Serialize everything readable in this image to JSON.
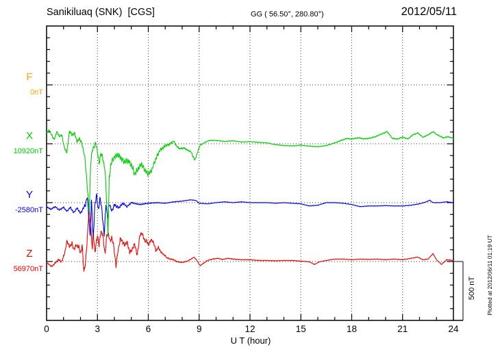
{
  "header": {
    "station": "Sanikiluaq (SNK)  [CGS]",
    "coords": "GG ( 56.50°, 280.80°)",
    "date": "2012/05/11"
  },
  "x_axis": {
    "label": "U T (hour)",
    "ticks": [
      0,
      3,
      6,
      9,
      12,
      15,
      18,
      21,
      24
    ],
    "minor_step_hours": 1,
    "range": [
      0,
      24
    ]
  },
  "scale_bar": {
    "label": "500 nT",
    "nT": 500
  },
  "footer_note": "Plotted at 2012/06/11 01:19 UT",
  "components": [
    {
      "id": "F",
      "label": "F",
      "value_label": "0nT",
      "color": "#FFA500"
    },
    {
      "id": "X",
      "label": "X",
      "value_label": "10920nT",
      "color": "#00CC00"
    },
    {
      "id": "Y",
      "label": "Y",
      "value_label": "-2580nT",
      "color": "#0000EE"
    },
    {
      "id": "Z",
      "label": "Z",
      "value_label": "56970nT",
      "color": "#EE0000"
    }
  ],
  "chart_data": {
    "type": "line",
    "title": "Sanikiluaq (SNK) [CGS] magnetogram 2012/05/11",
    "x_label": "U T (hour)",
    "x_range": [
      0,
      24
    ],
    "x_major_tick_hours": 3,
    "grid": "dotted at 3-hour verticals and component baselines",
    "minor_tick_nT": 100,
    "baseline_spacing_nT": 500,
    "total_span_nT": 2500,
    "scale_bar_nT": 500,
    "point_format": "[UT_hour, delta_nT_from_baseline]",
    "series": [
      {
        "name": "F",
        "color": "#FFA500",
        "baseline_value_nT": 0,
        "baseline_label": "0nT",
        "jitter_nT": [
          [
            0,
            0
          ],
          [
            24,
            0
          ]
        ],
        "points": []
      },
      {
        "name": "X",
        "color": "#00CC00",
        "baseline_value_nT": 10920,
        "baseline_label": "10920nT",
        "jitter_nT": [
          [
            0,
            10
          ],
          [
            1,
            12
          ],
          [
            2.2,
            20
          ],
          [
            3,
            25
          ],
          [
            4,
            28
          ],
          [
            5,
            32
          ],
          [
            6.5,
            22
          ],
          [
            7.5,
            12
          ],
          [
            8.8,
            8
          ],
          [
            9.5,
            4
          ],
          [
            13,
            3
          ],
          [
            16.5,
            4
          ],
          [
            17.5,
            6
          ],
          [
            24,
            6
          ]
        ],
        "points": [
          [
            0,
            91
          ],
          [
            0.15,
            120
          ],
          [
            0.3,
            74
          ],
          [
            0.45,
            34
          ],
          [
            0.6,
            103
          ],
          [
            0.75,
            63
          ],
          [
            0.9,
            74
          ],
          [
            1.05,
            -36
          ],
          [
            1.2,
            -71
          ],
          [
            1.35,
            109
          ],
          [
            1.5,
            74
          ],
          [
            1.65,
            91
          ],
          [
            1.8,
            16
          ],
          [
            1.95,
            45
          ],
          [
            2.1,
            -7
          ],
          [
            2.25,
            -111
          ],
          [
            2.35,
            -267
          ],
          [
            2.45,
            -458
          ],
          [
            2.52,
            -574
          ],
          [
            2.6,
            -169
          ],
          [
            2.7,
            -53
          ],
          [
            2.8,
            -24
          ],
          [
            2.9,
            5
          ],
          [
            3.0,
            -65
          ],
          [
            3.1,
            -169
          ],
          [
            3.2,
            -82
          ],
          [
            3.3,
            -111
          ],
          [
            3.45,
            -227
          ],
          [
            3.55,
            -516
          ],
          [
            3.62,
            -777
          ],
          [
            3.7,
            -285
          ],
          [
            3.8,
            -169
          ],
          [
            3.9,
            -140
          ],
          [
            4.0,
            -111
          ],
          [
            4.2,
            -94
          ],
          [
            4.4,
            -123
          ],
          [
            4.6,
            -157
          ],
          [
            4.8,
            -140
          ],
          [
            5.0,
            -181
          ],
          [
            5.2,
            -256
          ],
          [
            5.4,
            -215
          ],
          [
            5.6,
            -169
          ],
          [
            5.8,
            -227
          ],
          [
            6.0,
            -256
          ],
          [
            6.2,
            -227
          ],
          [
            6.4,
            -140
          ],
          [
            6.7,
            -53
          ],
          [
            7.0,
            -18
          ],
          [
            7.3,
            0
          ],
          [
            7.5,
            22
          ],
          [
            7.7,
            -25
          ],
          [
            7.85,
            -42
          ],
          [
            8.1,
            -36
          ],
          [
            8.3,
            -53
          ],
          [
            8.5,
            -65
          ],
          [
            8.75,
            -140
          ],
          [
            9.05,
            -13
          ],
          [
            9.4,
            16
          ],
          [
            9.6,
            28
          ],
          [
            10,
            28
          ],
          [
            10.5,
            20
          ],
          [
            11,
            25
          ],
          [
            11.5,
            15
          ],
          [
            12,
            18
          ],
          [
            12.5,
            12
          ],
          [
            13,
            8
          ],
          [
            13.5,
            -8
          ],
          [
            14,
            -15
          ],
          [
            14.5,
            -18
          ],
          [
            15,
            -12
          ],
          [
            15.5,
            -20
          ],
          [
            16,
            -25
          ],
          [
            16.5,
            -15
          ],
          [
            17,
            7
          ],
          [
            17.4,
            30
          ],
          [
            17.7,
            45
          ],
          [
            18,
            40
          ],
          [
            18.4,
            51
          ],
          [
            18.7,
            42
          ],
          [
            19,
            45
          ],
          [
            19.4,
            60
          ],
          [
            19.7,
            80
          ],
          [
            20.1,
            103
          ],
          [
            20.4,
            45
          ],
          [
            20.7,
            40
          ],
          [
            21,
            57
          ],
          [
            21.3,
            40
          ],
          [
            21.6,
            75
          ],
          [
            21.9,
            92
          ],
          [
            22.2,
            55
          ],
          [
            22.5,
            75
          ],
          [
            22.8,
            103
          ],
          [
            23,
            80
          ],
          [
            23.2,
            65
          ],
          [
            23.4,
            50
          ],
          [
            23.7,
            60
          ],
          [
            24,
            45
          ]
        ]
      },
      {
        "name": "Y",
        "color": "#0000EE",
        "baseline_value_nT": -2580,
        "baseline_label": "-2580nT",
        "jitter_nT": [
          [
            0,
            8
          ],
          [
            2,
            10
          ],
          [
            2.5,
            30
          ],
          [
            4,
            18
          ],
          [
            5,
            8
          ],
          [
            7,
            4
          ],
          [
            9,
            3
          ],
          [
            24,
            3
          ]
        ],
        "points": [
          [
            0,
            -34
          ],
          [
            0.25,
            -57
          ],
          [
            0.5,
            -34
          ],
          [
            0.75,
            -63
          ],
          [
            1.0,
            -39
          ],
          [
            1.2,
            -74
          ],
          [
            1.4,
            -39
          ],
          [
            1.6,
            -86
          ],
          [
            1.8,
            -45
          ],
          [
            2.0,
            -91
          ],
          [
            2.15,
            -51
          ],
          [
            2.3,
            -16
          ],
          [
            2.4,
            53
          ],
          [
            2.5,
            -132
          ],
          [
            2.57,
            -306
          ],
          [
            2.65,
            42
          ],
          [
            2.75,
            -317
          ],
          [
            2.85,
            -16
          ],
          [
            2.95,
            71
          ],
          [
            3.05,
            -74
          ],
          [
            3.15,
            42
          ],
          [
            3.25,
            -45
          ],
          [
            3.4,
            -277
          ],
          [
            3.5,
            -16
          ],
          [
            3.6,
            -132
          ],
          [
            3.7,
            -5
          ],
          [
            3.85,
            -74
          ],
          [
            4.0,
            -16
          ],
          [
            4.25,
            -45
          ],
          [
            4.5,
            -5
          ],
          [
            4.75,
            -34
          ],
          [
            5.0,
            0
          ],
          [
            5.5,
            -16
          ],
          [
            6.0,
            -5
          ],
          [
            6.5,
            0
          ],
          [
            7.0,
            -5
          ],
          [
            7.5,
            7
          ],
          [
            8.0,
            13
          ],
          [
            8.5,
            24
          ],
          [
            8.8,
            19
          ],
          [
            9.0,
            -5
          ],
          [
            9.5,
            -10
          ],
          [
            10,
            0
          ],
          [
            10.5,
            7
          ],
          [
            11,
            0
          ],
          [
            11.5,
            7
          ],
          [
            12,
            0
          ],
          [
            12.5,
            0
          ],
          [
            13,
            0
          ],
          [
            13.5,
            -5
          ],
          [
            14,
            0
          ],
          [
            14.5,
            -5
          ],
          [
            15,
            -10
          ],
          [
            15.5,
            -28
          ],
          [
            16,
            -22
          ],
          [
            16.5,
            0
          ],
          [
            17,
            0
          ],
          [
            17.5,
            -5
          ],
          [
            18,
            -16
          ],
          [
            18.5,
            -34
          ],
          [
            19,
            -28
          ],
          [
            19.5,
            -28
          ],
          [
            20,
            -25
          ],
          [
            20.5,
            -28
          ],
          [
            21,
            -28
          ],
          [
            21.5,
            -22
          ],
          [
            22,
            -10
          ],
          [
            22.4,
            7
          ],
          [
            22.6,
            21
          ],
          [
            22.8,
            0
          ],
          [
            23.2,
            0
          ],
          [
            23.6,
            7
          ],
          [
            24,
            0
          ]
        ]
      },
      {
        "name": "Z",
        "color": "#EE0000",
        "baseline_value_nT": 56970,
        "baseline_label": "56970nT",
        "jitter_nT": [
          [
            0,
            6
          ],
          [
            1,
            14
          ],
          [
            2.4,
            25
          ],
          [
            4,
            22
          ],
          [
            6,
            18
          ],
          [
            7,
            8
          ],
          [
            8,
            5
          ],
          [
            9.5,
            5
          ],
          [
            10.5,
            4
          ],
          [
            17,
            2.5
          ],
          [
            21,
            3
          ],
          [
            24,
            4
          ]
        ],
        "points": [
          [
            0,
            -8
          ],
          [
            0.3,
            -43
          ],
          [
            0.5,
            -14
          ],
          [
            0.7,
            15
          ],
          [
            0.9,
            -2
          ],
          [
            1.1,
            90
          ],
          [
            1.2,
            177
          ],
          [
            1.35,
            125
          ],
          [
            1.5,
            154
          ],
          [
            1.6,
            102
          ],
          [
            1.75,
            137
          ],
          [
            1.9,
            125
          ],
          [
            2.0,
            67
          ],
          [
            2.1,
            137
          ],
          [
            2.2,
            -83
          ],
          [
            2.3,
            -8
          ],
          [
            2.4,
            194
          ],
          [
            2.5,
            443
          ],
          [
            2.6,
            310
          ],
          [
            2.7,
            108
          ],
          [
            2.75,
            252
          ],
          [
            2.85,
            79
          ],
          [
            3.0,
            223
          ],
          [
            3.1,
            137
          ],
          [
            3.2,
            252
          ],
          [
            3.3,
            241
          ],
          [
            3.45,
            61
          ],
          [
            3.55,
            223
          ],
          [
            3.65,
            241
          ],
          [
            3.75,
            166
          ],
          [
            3.85,
            206
          ],
          [
            3.95,
            137
          ],
          [
            4.1,
            -37
          ],
          [
            4.2,
            79
          ],
          [
            4.35,
            194
          ],
          [
            4.45,
            177
          ],
          [
            4.6,
            137
          ],
          [
            4.75,
            166
          ],
          [
            4.9,
            79
          ],
          [
            5.0,
            90
          ],
          [
            5.2,
            148
          ],
          [
            5.35,
            50
          ],
          [
            5.5,
            223
          ],
          [
            5.65,
            241
          ],
          [
            5.8,
            166
          ],
          [
            5.9,
            183
          ],
          [
            6.0,
            137
          ],
          [
            6.15,
            183
          ],
          [
            6.3,
            166
          ],
          [
            6.45,
            90
          ],
          [
            6.6,
            119
          ],
          [
            6.75,
            79
          ],
          [
            6.9,
            61
          ],
          [
            7.1,
            32
          ],
          [
            7.3,
            21
          ],
          [
            7.5,
            15
          ],
          [
            7.7,
            -2
          ],
          [
            8.0,
            -8
          ],
          [
            8.3,
            3
          ],
          [
            8.6,
            27
          ],
          [
            8.7,
            38
          ],
          [
            8.9,
            3
          ],
          [
            9.05,
            -37
          ],
          [
            9.2,
            -20
          ],
          [
            9.5,
            9
          ],
          [
            9.8,
            21
          ],
          [
            10.1,
            27
          ],
          [
            10.4,
            18
          ],
          [
            10.7,
            27
          ],
          [
            11,
            21
          ],
          [
            11.5,
            15
          ],
          [
            12,
            15
          ],
          [
            12.5,
            9
          ],
          [
            13,
            9
          ],
          [
            13.5,
            6
          ],
          [
            14,
            9
          ],
          [
            14.5,
            9
          ],
          [
            15,
            3
          ],
          [
            15.5,
            -2
          ],
          [
            15.8,
            -25
          ],
          [
            16.1,
            -2
          ],
          [
            16.5,
            9
          ],
          [
            17,
            21
          ],
          [
            17.5,
            21
          ],
          [
            18,
            15
          ],
          [
            18.5,
            21
          ],
          [
            19,
            18
          ],
          [
            19.5,
            21
          ],
          [
            20,
            15
          ],
          [
            20.5,
            21
          ],
          [
            21,
            15
          ],
          [
            21.5,
            27
          ],
          [
            21.9,
            38
          ],
          [
            22.2,
            15
          ],
          [
            22.5,
            21
          ],
          [
            22.8,
            67
          ],
          [
            23,
            15
          ],
          [
            23.3,
            -25
          ],
          [
            23.6,
            15
          ],
          [
            24,
            9
          ]
        ]
      }
    ]
  },
  "colors": {
    "axis": "#000000",
    "grid_dots": "#333333",
    "scale_bar": "#555555",
    "background": "#ffffff"
  }
}
